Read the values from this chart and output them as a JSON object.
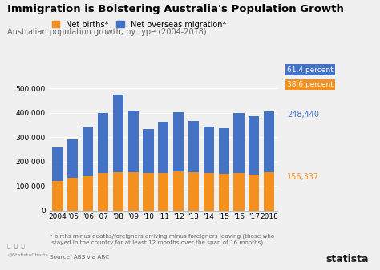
{
  "title": "Immigration is Bolstering Australia's Population Growth",
  "subtitle": "Australian population growth, by type (2004-2018)",
  "years": [
    "2004",
    "'05",
    "'06",
    "'07",
    "'08",
    "'09",
    "'10",
    "'11",
    "'12",
    "'13",
    "'14",
    "'15",
    "'16",
    "'17",
    "2018"
  ],
  "net_births": [
    120000,
    135000,
    140000,
    155000,
    158000,
    158000,
    155000,
    153000,
    160000,
    157000,
    155000,
    150000,
    153000,
    148000,
    156337
  ],
  "net_migration": [
    138000,
    155000,
    200000,
    245000,
    315000,
    250000,
    178000,
    210000,
    243000,
    210000,
    188000,
    188000,
    245000,
    238000,
    248440
  ],
  "bar_color_births": "#F4901E",
  "bar_color_migration": "#4472C4",
  "bg_color": "#f0f0f0",
  "footnote": "* births minus deaths/foreigners arriving minus foreigners leaving (those who\n stayed in the country for at least 12 months over the span of 16 months)",
  "source": "Source: ABS via ABC",
  "ylim": [
    0,
    530000
  ]
}
